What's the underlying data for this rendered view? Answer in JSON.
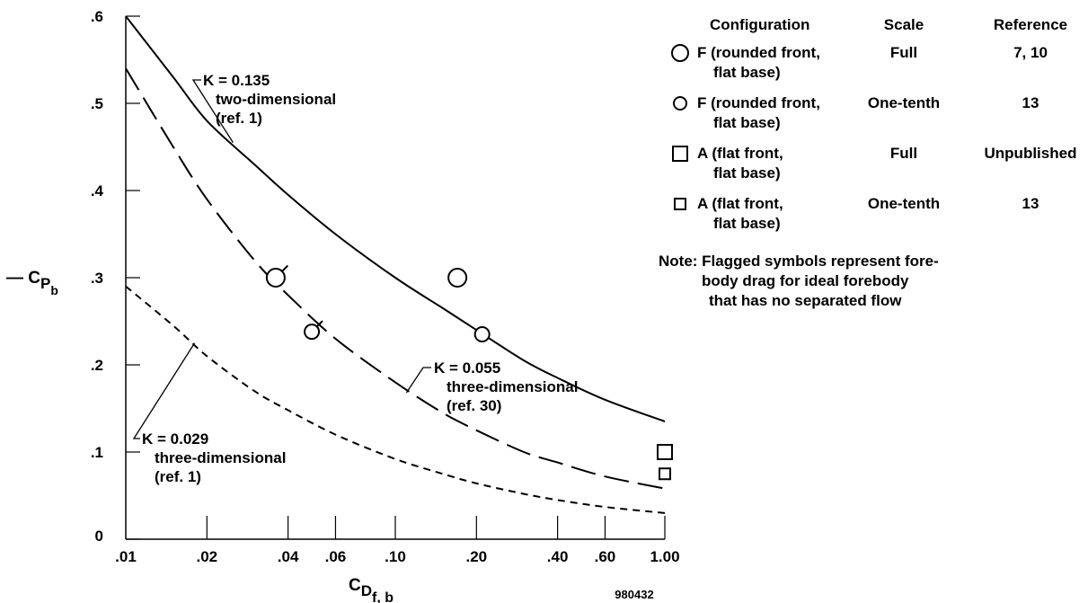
{
  "chart_data": {
    "type": "line",
    "xscale": "log",
    "xlim": [
      0.01,
      1.0
    ],
    "ylim": [
      0,
      0.6
    ],
    "x_ticks": [
      {
        "value": 0.01,
        "label": ".01"
      },
      {
        "value": 0.02,
        "label": ".02"
      },
      {
        "value": 0.04,
        "label": ".04"
      },
      {
        "value": 0.06,
        "label": ".06"
      },
      {
        "value": 0.1,
        "label": ".10"
      },
      {
        "value": 0.2,
        "label": ".20"
      },
      {
        "value": 0.4,
        "label": ".40"
      },
      {
        "value": 0.6,
        "label": ".60"
      },
      {
        "value": 1.0,
        "label": "1.00"
      }
    ],
    "y_ticks": [
      {
        "value": 0,
        "label": "0"
      },
      {
        "value": 0.1,
        "label": ".1"
      },
      {
        "value": 0.2,
        "label": ".2"
      },
      {
        "value": 0.3,
        "label": ".3"
      },
      {
        "value": 0.4,
        "label": ".4"
      },
      {
        "value": 0.5,
        "label": ".5"
      },
      {
        "value": 0.6,
        "label": ".6"
      }
    ],
    "xlabel": {
      "main": "C",
      "sub": "D",
      "subsub": "f, b"
    },
    "ylabel": {
      "prefix": "— C",
      "sub": "P",
      "subsub": "b"
    },
    "series": [
      {
        "style": "solid",
        "label_lines": [
          "K = 0.135",
          "two-dimensional",
          "(ref. 1)"
        ],
        "x": [
          0.01,
          0.015,
          0.02,
          0.03,
          0.04,
          0.06,
          0.1,
          0.15,
          0.2,
          0.3,
          0.4,
          0.6,
          1.0
        ],
        "y": [
          0.6,
          0.53,
          0.48,
          0.43,
          0.395,
          0.35,
          0.3,
          0.265,
          0.24,
          0.205,
          0.185,
          0.16,
          0.135
        ]
      },
      {
        "style": "long-dash",
        "label_lines": [
          "K = 0.055",
          "three-dimensional",
          "(ref. 30)"
        ],
        "x": [
          0.01,
          0.015,
          0.02,
          0.03,
          0.04,
          0.06,
          0.1,
          0.15,
          0.2,
          0.3,
          0.4,
          0.6,
          1.0
        ],
        "y": [
          0.54,
          0.45,
          0.39,
          0.32,
          0.28,
          0.23,
          0.18,
          0.145,
          0.125,
          0.1,
          0.088,
          0.072,
          0.058
        ]
      },
      {
        "style": "short-dash",
        "label_lines": [
          "K = 0.029",
          "three-dimensional",
          "(ref. 1)"
        ],
        "x": [
          0.01,
          0.015,
          0.02,
          0.03,
          0.04,
          0.06,
          0.1,
          0.15,
          0.2,
          0.3,
          0.4,
          0.6,
          1.0
        ],
        "y": [
          0.29,
          0.245,
          0.21,
          0.17,
          0.148,
          0.12,
          0.092,
          0.075,
          0.064,
          0.052,
          0.045,
          0.037,
          0.03
        ]
      }
    ],
    "points": [
      {
        "x": 0.036,
        "y": 0.3,
        "marker": "circle-large",
        "flagged": true
      },
      {
        "x": 0.049,
        "y": 0.238,
        "marker": "circle-small",
        "flagged": true
      },
      {
        "x": 0.17,
        "y": 0.3,
        "marker": "circle-large",
        "flagged": false
      },
      {
        "x": 0.21,
        "y": 0.235,
        "marker": "circle-small",
        "flagged": false
      },
      {
        "x": 1.0,
        "y": 0.1,
        "marker": "square-large",
        "flagged": false
      },
      {
        "x": 1.0,
        "y": 0.075,
        "marker": "square-small",
        "flagged": false
      }
    ],
    "legend": {
      "placement": "top-right",
      "headers": [
        "Configuration",
        "Scale",
        "Reference"
      ],
      "rows": [
        {
          "marker": "circle-large",
          "config_lines": [
            "F (rounded front,",
            "flat base)"
          ],
          "scale": "Full",
          "reference": "7, 10"
        },
        {
          "marker": "circle-small",
          "config_lines": [
            "F (rounded front,",
            "flat base)"
          ],
          "scale": "One-tenth",
          "reference": "13"
        },
        {
          "marker": "square-large",
          "config_lines": [
            "A (flat front,",
            "flat base)"
          ],
          "scale": "Full",
          "reference": "Unpublished"
        },
        {
          "marker": "square-small",
          "config_lines": [
            "A (flat front,",
            "flat base)"
          ],
          "scale": "One-tenth",
          "reference": "13"
        }
      ],
      "note_lines": [
        "Note: Flagged symbols represent fore-",
        "body drag for ideal forebody",
        "that has no separated flow"
      ]
    },
    "figure_id": "980432"
  }
}
